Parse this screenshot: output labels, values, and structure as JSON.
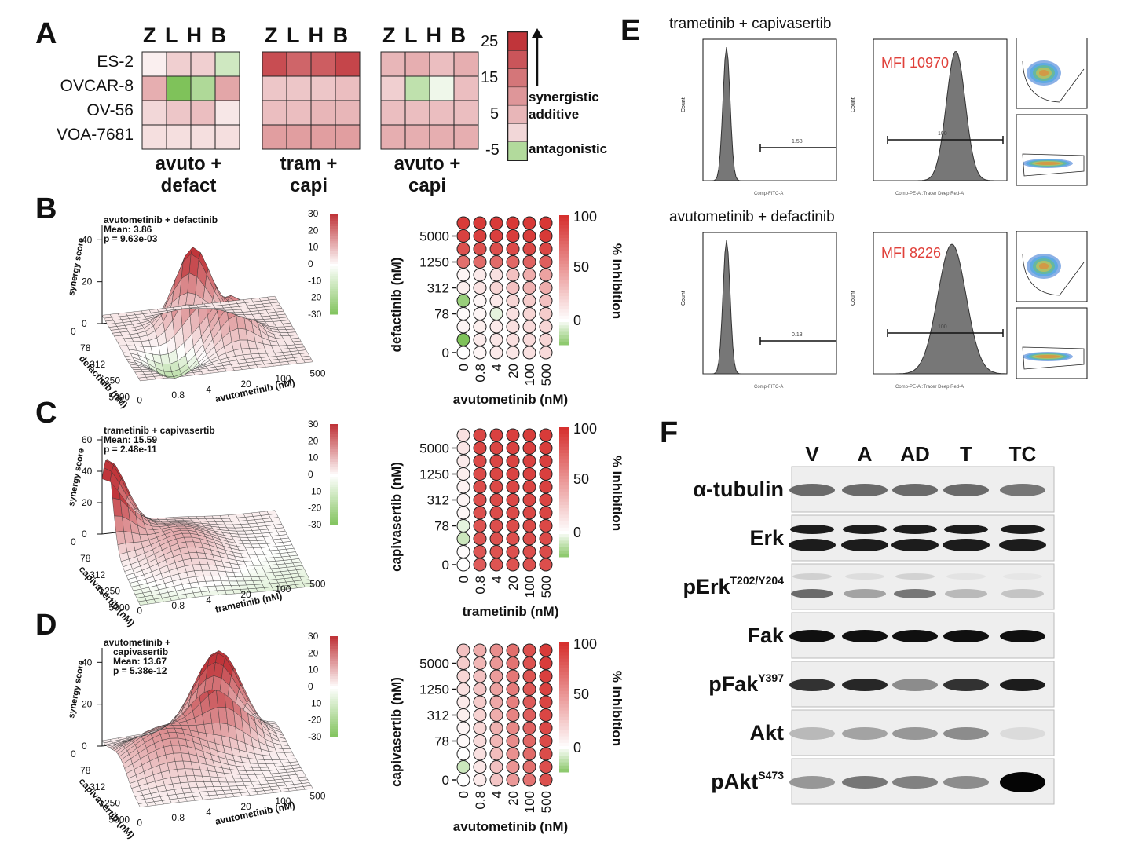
{
  "panel_letters": {
    "a": "A",
    "b": "B",
    "c": "C",
    "d": "D",
    "e": "E",
    "f": "F"
  },
  "panel_a": {
    "column_heads": [
      "Z",
      "L",
      "H",
      "B"
    ],
    "rows": [
      "ES-2",
      "OVCAR-8",
      "OV-56",
      "VOA-7681"
    ],
    "combos": [
      {
        "line1": "avuto +",
        "line2": "defact",
        "values": [
          [
            2,
            6,
            6,
            -3
          ],
          [
            10,
            -8,
            -5,
            11
          ],
          [
            5,
            7,
            8,
            3
          ],
          [
            4,
            4,
            4,
            4
          ]
        ]
      },
      {
        "line1": "tram +",
        "line2": "capi",
        "values": [
          [
            22,
            19,
            20,
            23
          ],
          [
            7,
            7,
            7,
            8
          ],
          [
            8,
            8,
            9,
            9
          ],
          [
            12,
            12,
            12,
            12
          ]
        ]
      },
      {
        "line1": "avuto +",
        "line2": "capi",
        "values": [
          [
            9,
            10,
            8,
            10
          ],
          [
            6,
            -4,
            -1,
            8
          ],
          [
            8,
            8,
            8,
            8
          ],
          [
            10,
            10,
            10,
            10
          ]
        ]
      }
    ],
    "colorbar_ticks": [
      "25",
      "15",
      "5",
      "-5"
    ],
    "colorbar_labels": [
      "synergistic",
      "additive",
      "antagonistic"
    ]
  },
  "surfaces": [
    {
      "title": "avutometinib + defactinib",
      "mean": "Mean: 3.86",
      "p": "p = 9.63e-03",
      "zlabel": "synergy score",
      "zticks": [
        "40",
        "20",
        "0"
      ],
      "ylabel": "defactinib (nM)",
      "yticks": [
        "5000",
        "1250",
        "312",
        "78",
        "0"
      ],
      "xlabel": "avutometinib (nM)",
      "xticks": [
        "0",
        "0.8",
        "4",
        "20",
        "100",
        "500"
      ],
      "cbar": [
        "30",
        "20",
        "10",
        "0",
        "-10",
        "-20",
        "-30"
      ]
    },
    {
      "title": "trametinib + capivasertib",
      "mean": "Mean: 15.59",
      "p": "p = 2.48e-11",
      "zlabel": "synergy score",
      "zticks": [
        "60",
        "40",
        "20",
        "0"
      ],
      "ylabel": "capivasertib (nM)",
      "yticks": [
        "5000",
        "1250",
        "312",
        "78",
        "0"
      ],
      "xlabel": "trametinib (nM)",
      "xticks": [
        "0",
        "0.8",
        "4",
        "20",
        "100",
        "500"
      ],
      "cbar": [
        "30",
        "20",
        "10",
        "0",
        "-10",
        "-20",
        "-30"
      ]
    },
    {
      "title": "avutometinib +",
      "title2": "capivasertib",
      "mean": "Mean: 13.67",
      "p": "p = 5.38e-12",
      "zlabel": "synergy score",
      "zticks": [
        "40",
        "20",
        "0"
      ],
      "ylabel": "capivasertib (nM)",
      "yticks": [
        "5000",
        "1250",
        "312",
        "78",
        "0"
      ],
      "xlabel": "avutometinib (nM)",
      "xticks": [
        "0",
        "0.8",
        "4",
        "20",
        "100",
        "500"
      ],
      "cbar": [
        "30",
        "20",
        "10",
        "0",
        "-10",
        "-20",
        "-30"
      ]
    }
  ],
  "dots": [
    {
      "ylabel": "defactinib (nM)",
      "yticks": [
        "5000",
        "1250",
        "312",
        "78",
        "0"
      ],
      "xlabel": "avutometinib (nM)",
      "xticks": [
        "0",
        "0.8",
        "4",
        "20",
        "100",
        "500"
      ],
      "cbar_title": "% Inhibition",
      "cbar_ticks": [
        "100",
        "50",
        "0"
      ],
      "values": [
        [
          95,
          95,
          95,
          96,
          96,
          97
        ],
        [
          92,
          93,
          93,
          94,
          95,
          96
        ],
        [
          85,
          85,
          86,
          88,
          89,
          90
        ],
        [
          70,
          72,
          72,
          74,
          76,
          78
        ],
        [
          5,
          10,
          15,
          30,
          40,
          45
        ],
        [
          8,
          14,
          20,
          30,
          38,
          40
        ],
        [
          -20,
          5,
          10,
          20,
          25,
          30
        ],
        [
          2,
          5,
          -5,
          15,
          20,
          25
        ],
        [
          5,
          8,
          10,
          15,
          18,
          20
        ],
        [
          -25,
          10,
          12,
          15,
          18,
          20
        ],
        [
          0,
          5,
          10,
          12,
          15,
          18
        ]
      ]
    },
    {
      "ylabel": "capivasertib (nM)",
      "yticks": [
        "5000",
        "1250",
        "312",
        "78",
        "0"
      ],
      "xlabel": "trametinib (nM)",
      "xticks": [
        "0",
        "0.8",
        "4",
        "20",
        "100",
        "500"
      ],
      "cbar_title": "% Inhibition",
      "cbar_ticks": [
        "100",
        "50",
        "0"
      ],
      "values": [
        [
          15,
          90,
          92,
          93,
          94,
          95
        ],
        [
          12,
          90,
          91,
          92,
          93,
          94
        ],
        [
          10,
          88,
          90,
          91,
          92,
          93
        ],
        [
          8,
          88,
          90,
          91,
          92,
          93
        ],
        [
          6,
          87,
          89,
          90,
          91,
          92
        ],
        [
          5,
          86,
          88,
          89,
          90,
          91
        ],
        [
          4,
          85,
          87,
          88,
          89,
          90
        ],
        [
          -5,
          84,
          86,
          87,
          88,
          89
        ],
        [
          -10,
          83,
          85,
          86,
          87,
          88
        ],
        [
          2,
          82,
          84,
          85,
          86,
          87
        ],
        [
          0,
          80,
          83,
          84,
          85,
          86
        ]
      ]
    },
    {
      "ylabel": "capivasertib (nM)",
      "yticks": [
        "5000",
        "1250",
        "312",
        "78",
        "0"
      ],
      "xlabel": "avutometinib (nM)",
      "xticks": [
        "0",
        "0.8",
        "4",
        "20",
        "100",
        "500"
      ],
      "cbar_title": "% Inhibition",
      "cbar_ticks": [
        "100",
        "50",
        "0"
      ],
      "values": [
        [
          30,
          40,
          55,
          70,
          85,
          95
        ],
        [
          25,
          35,
          50,
          68,
          84,
          94
        ],
        [
          20,
          30,
          48,
          66,
          83,
          93
        ],
        [
          15,
          28,
          45,
          64,
          82,
          92
        ],
        [
          10,
          25,
          42,
          62,
          80,
          91
        ],
        [
          8,
          22,
          40,
          60,
          78,
          90
        ],
        [
          5,
          20,
          38,
          58,
          76,
          89
        ],
        [
          3,
          18,
          35,
          56,
          74,
          88
        ],
        [
          0,
          15,
          32,
          54,
          72,
          87
        ],
        [
          -10,
          12,
          30,
          52,
          70,
          86
        ],
        [
          0,
          10,
          28,
          50,
          68,
          85
        ]
      ]
    }
  ],
  "panel_e": {
    "blocks": [
      {
        "title": "trametinib + capivasertib",
        "mfi": "MFI 10970",
        "gate1": "1.58",
        "gate2": "100",
        "hist1_x": "Comp-FITC-A",
        "hist2_x": "Comp-PE-A::Tracer Deep Red-A",
        "ylab": "Count"
      },
      {
        "title": "avutometinib + defactinib",
        "mfi": "MFI 8226",
        "gate1": "0.13",
        "gate2": "100",
        "hist1_x": "Comp-FITC-A",
        "hist2_x": "Comp-PE-A::Tracer Deep Red-A",
        "ylab": "Count"
      }
    ]
  },
  "panel_f": {
    "lanes": [
      "V",
      "A",
      "AD",
      "T",
      "TC"
    ],
    "proteins": [
      {
        "name": "α-tubulin",
        "sup": ""
      },
      {
        "name": "Erk",
        "sup": ""
      },
      {
        "name": "pErk",
        "sup": "T202/Y204"
      },
      {
        "name": "Fak",
        "sup": ""
      },
      {
        "name": "pFak",
        "sup": "Y397"
      },
      {
        "name": "Akt",
        "sup": ""
      },
      {
        "name": "pAkt",
        "sup": "S473"
      }
    ],
    "band_intensity": [
      [
        0.55,
        0.55,
        0.55,
        0.55,
        0.5
      ],
      [
        0.9,
        0.9,
        0.9,
        0.9,
        0.9
      ],
      [
        0.55,
        0.3,
        0.5,
        0.2,
        0.15
      ],
      [
        0.95,
        0.95,
        0.95,
        0.95,
        0.95
      ],
      [
        0.8,
        0.85,
        0.4,
        0.8,
        0.9
      ],
      [
        0.2,
        0.3,
        0.35,
        0.4,
        0.05
      ],
      [
        0.35,
        0.5,
        0.45,
        0.4,
        1.0
      ]
    ]
  }
}
